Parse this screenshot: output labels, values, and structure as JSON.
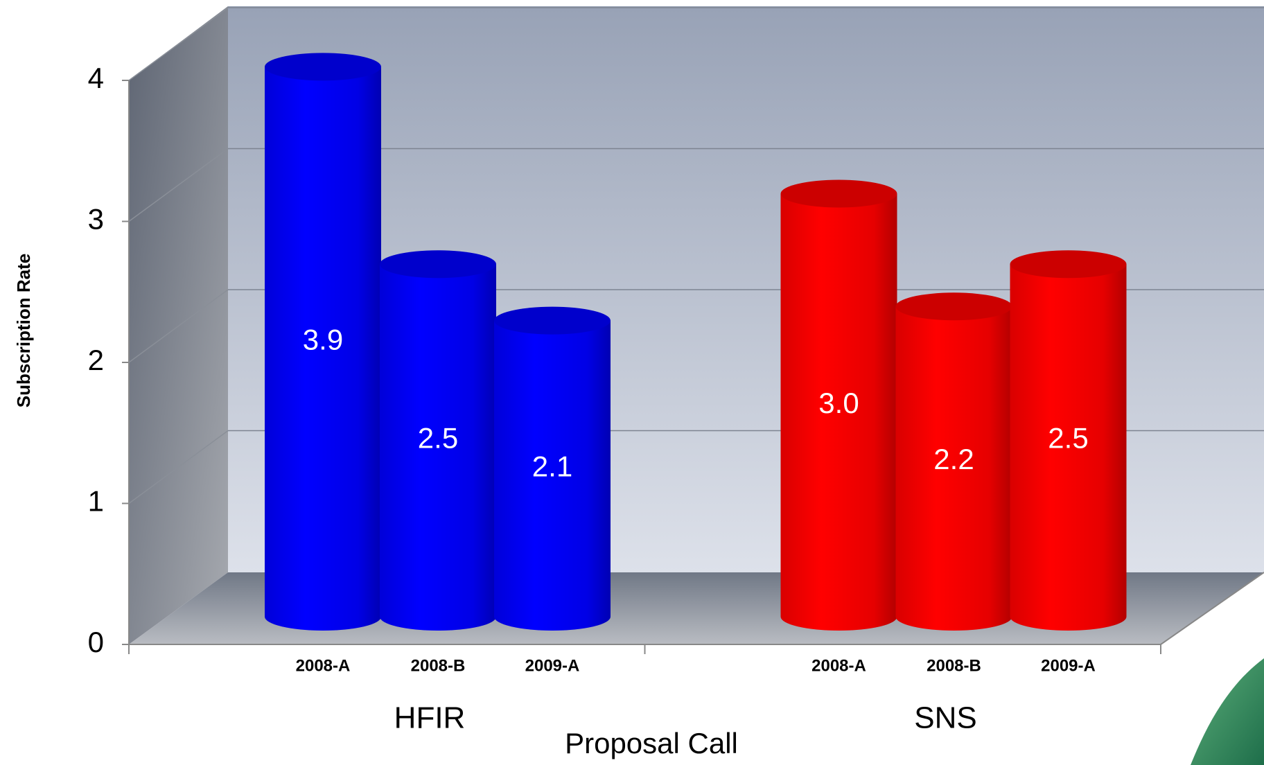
{
  "chart_data": {
    "type": "bar3d",
    "y_label": "Subscription Rate",
    "x_label": "Proposal Call",
    "categories": [
      "2008-A",
      "2008-B",
      "2009-A"
    ],
    "series": [
      {
        "name": "HFIR",
        "color": "#0000ff",
        "values": [
          3.9,
          2.5,
          2.1
        ],
        "value_labels": [
          "3.9",
          "2.5",
          "2.1"
        ]
      },
      {
        "name": "SNS",
        "color": "#ff0000",
        "values": [
          3.0,
          2.2,
          2.5
        ],
        "value_labels": [
          "3.0",
          "2.2",
          "2.5"
        ]
      }
    ],
    "ylim": [
      0,
      4
    ],
    "yticks": [
      0,
      1,
      2,
      3,
      4
    ],
    "grid": true
  }
}
